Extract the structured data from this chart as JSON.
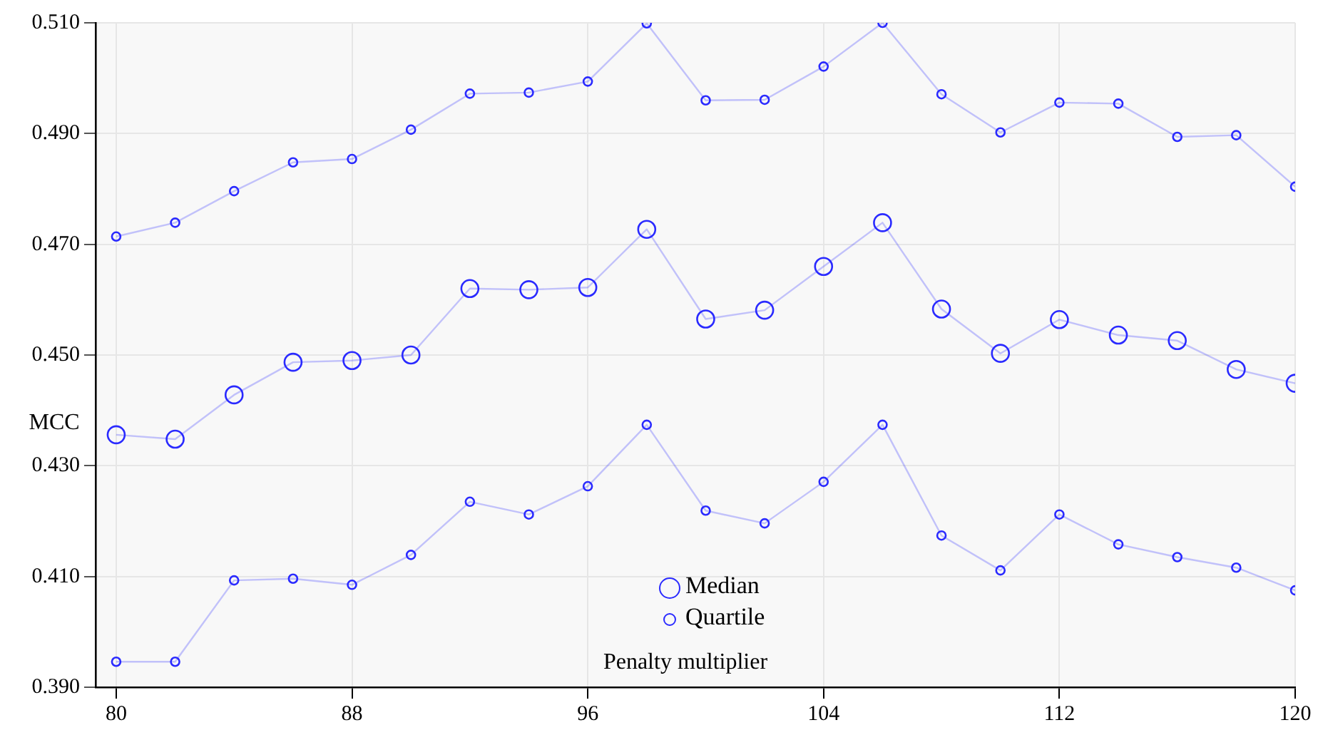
{
  "chart_data": {
    "type": "line",
    "xlabel": "Penalty multiplier",
    "ylabel": "MCC",
    "x": [
      80,
      82,
      84,
      86,
      88,
      90,
      92,
      94,
      96,
      98,
      100,
      102,
      104,
      106,
      108,
      110,
      112,
      114,
      116,
      118,
      120
    ],
    "xlim": [
      79.3,
      120
    ],
    "xticks": [
      80,
      88,
      96,
      104,
      112,
      120
    ],
    "ylim": [
      0.39,
      0.51
    ],
    "yticks": [
      {
        "value": 0.39,
        "label": "0.390"
      },
      {
        "value": 0.41,
        "label": "0.410"
      },
      {
        "value": 0.43,
        "label": "0.430"
      },
      {
        "value": 0.45,
        "label": "0.450"
      },
      {
        "value": 0.47,
        "label": "0.470"
      },
      {
        "value": 0.49,
        "label": "0.490"
      },
      {
        "value": 0.51,
        "label": "0.510"
      }
    ],
    "grid": true,
    "legend": "bottom",
    "marker": "circle",
    "line_style": "solid",
    "series": [
      {
        "color": "#2a2aff",
        "values": [
          0.4714,
          0.4739,
          0.4796,
          0.4848,
          0.4854,
          0.4907,
          0.4972,
          0.4974,
          0.4994,
          0.5099,
          0.496,
          0.4961,
          0.5021,
          0.51,
          0.4971,
          0.4902,
          0.4956,
          0.4954,
          0.4894,
          0.4897,
          0.4804
        ]
      },
      {
        "name": "Median",
        "color": "#2a2aff",
        "values": [
          0.4356,
          0.4348,
          0.4428,
          0.4487,
          0.449,
          0.45,
          0.462,
          0.4618,
          0.4622,
          0.4727,
          0.4565,
          0.4581,
          0.466,
          0.4739,
          0.4583,
          0.4503,
          0.4564,
          0.4536,
          0.4526,
          0.4474,
          0.4449
        ]
      },
      {
        "name": "Quartile",
        "color": "#2a2aff",
        "values": [
          0.3946,
          0.3946,
          0.4093,
          0.4096,
          0.4085,
          0.4139,
          0.4235,
          0.4212,
          0.4263,
          0.4374,
          0.4219,
          0.4196,
          0.4271,
          0.4374,
          0.4174,
          0.4111,
          0.4212,
          0.4158,
          0.4135,
          0.4116,
          0.4075
        ]
      }
    ]
  }
}
